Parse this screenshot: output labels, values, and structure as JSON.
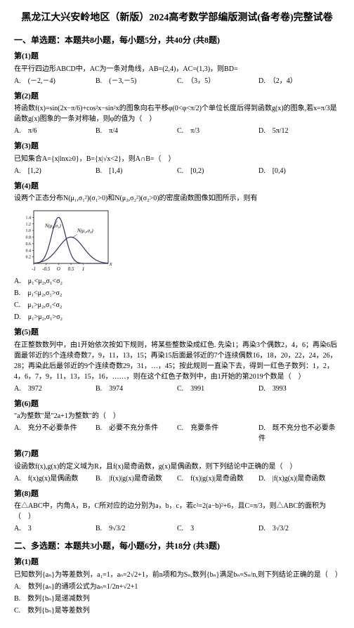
{
  "title": "黑龙江大兴安岭地区（新版）2024高考数学部编版测试(备考卷)完整试卷",
  "section1": "一、单选题：本题共8小题，每小题5分，共40分 (共8题)",
  "q1": {
    "num": "第(1)题",
    "text": "在平行四边形ABCD中，AC为一条对角线，AB=(2,4)，AC=(1,3)，则BD=",
    "a": "A.　(－2,－4)",
    "b": "B.　(－3,－5)",
    "c": "C.　（3，5）",
    "d": "D.　（2，4）"
  },
  "q2": {
    "num": "第(2)题",
    "text": "将函数f(x)=sin(2x−π/6)+cos²x−sin²x的图象向右平移φ(0<φ<π/2)个单位长度后得到函数g(x)的图象,若x=π/3是函数g(x)图象的一条对称轴，则φ的值为（　）",
    "a": "A.　π/6",
    "b": "B.　π/4",
    "c": "C.　π/3",
    "d": "D.　5π/12"
  },
  "q3": {
    "num": "第(3)题",
    "text": "已知集合A={x|lnx≥0}，B={x|√x<2}，则A∩B=（　）",
    "a": "A.　[1,2)",
    "b": "B.　[1,4)",
    "c": "C.　[0,2)",
    "d": "D.　[0,4)"
  },
  "q4": {
    "num": "第(4)题",
    "text": "设两个正态分布N(μ₁,σ₁²)(σ₁>0)和N(μ₂,σ₂²)(σ₂>0)的密度函数图像如图所示，则有",
    "a": "A.　μ₁<μ₂,σ₁<σ₂",
    "b": "B.　μ₁<μ₂,σ₁>σ₂",
    "c": "C.　μ₁>μ₂,σ₁<σ₂",
    "d": "D.　μ₁>μ₂,σ₁>σ₂",
    "chart": {
      "type": "line",
      "width": 140,
      "height": 95,
      "xlim": [
        -1.0,
        2.0
      ],
      "ylim": [
        0,
        1.6
      ],
      "xticks": [
        -1.0,
        -0.5,
        0,
        0.5,
        1.0
      ],
      "yticks": [
        0.2,
        0.4,
        0.6,
        0.8,
        1.0,
        1.2,
        1.4
      ],
      "xlabel": "x",
      "curve1_label": "N(μ₁,σ₁)",
      "curve2_label": "N(μ₂,σ₂)",
      "curve1_peak_x": 0.0,
      "curve1_peak_y": 1.4,
      "curve2_peak_x": 0.5,
      "curve2_peak_y": 0.8,
      "axis_color": "#000000",
      "curve_color": "#333366",
      "background": "#ffffff"
    }
  },
  "q5": {
    "num": "第(5)题",
    "text": "在正整数数列中，由1开始依次按如下规则，将某些整数染成红色. 先染1；再染3个偶数2，4，6；再染6后面最邻近的5个连续奇数7，9，11，13，15；再染15后面最邻近的7个连续偶数16，18，20，22，24，26，28；再染此后最邻近的9个连续奇数29，31，…，45；按此规则一直染下去，得到一红色子数列：1，2，4，6，7，9，11，13，15，16，……，则在这个红色子数列中，由1开始的第2019个数是（　）",
    "a": "A.　3972",
    "b": "B.　3974",
    "c": "C.　3991",
    "d": "D.　3993"
  },
  "q6": {
    "num": "第(6)题",
    "text": "\"a为整数\"是\"2a+1为整数\"的（　）",
    "a": "A.　充分不必要条件",
    "b": "B.　必要不充分条件",
    "c": "C.　充要条件",
    "d": "D.　既不充分也不必要条件"
  },
  "q7": {
    "num": "第(7)题",
    "text": "设函数f(x),g(x)的定义域为R，且f(x)是奇函数，g(x)是偶函数，则下列结论中正确的是（　）",
    "a": "A.　f(x)g(x)是偶函数",
    "b": "B.　|f(x)|g(x)是奇函数",
    "c": "C.　f(x)|g(x)|是奇函数",
    "d": "D.　|f(x)g(x)|是奇函数"
  },
  "q8": {
    "num": "第(8)题",
    "text": "在△ABC中，内角A，B，C所对应的边分别为a，b，c，若c²=2(a−b)²+6，且C=π/3，则△ABC的面积为（　）",
    "a": "A.　3",
    "b": "B.　9√3/2",
    "c": "C.　3",
    "d": "D.　3√3/2"
  },
  "section2": "二、多选题：本题共3小题，每小题6分，共18分 (共3题)",
  "q9": {
    "num": "第(1)题",
    "text": "已知数列{aₙ}为等差数列，a₁=1，aₙ=2√2+1，前n项和为Sₙ,数列{bₙ}满足bₙ=Sₙ/n,则下列结论正确的是（　）",
    "a": "A.　数列{aₙ}的通项公式为aₙ=1/2n+√2+1",
    "b": "B.　数列{bₙ}是递减数列",
    "c": "C.　数列{bₙ}是等差数列"
  }
}
